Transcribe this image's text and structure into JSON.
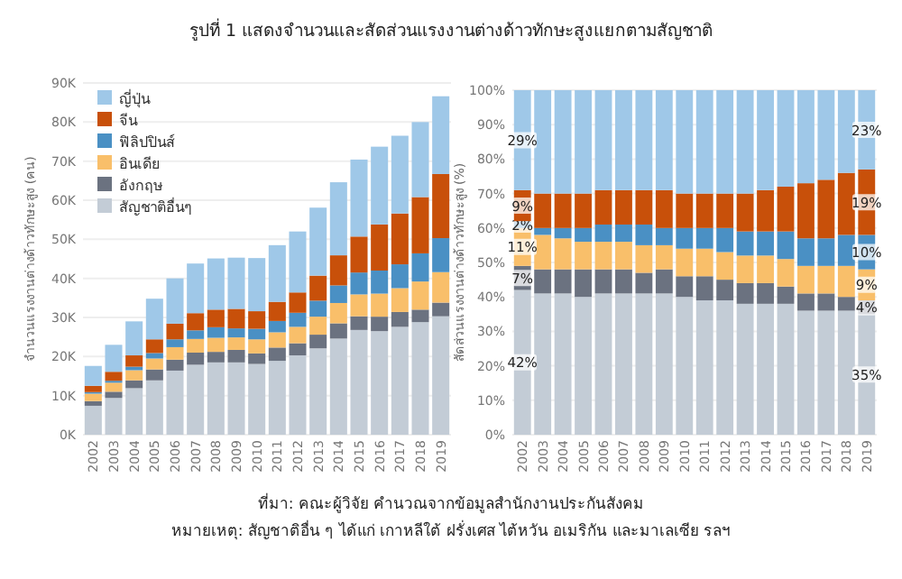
{
  "chart_data": [
    {
      "type": "bar",
      "title": "รูปที่ 1 แสดงจำนวนและสัดส่วนแรงงานต่างด้าวทักษะสูงแยกตามสัญชาติ",
      "ylabel": "จำนวนแรงงานต่างด้าวทักษะสูง (คน)",
      "stacked": true,
      "categories": [
        "2002",
        "2003",
        "2004",
        "2005",
        "2006",
        "2007",
        "2008",
        "2009",
        "2010",
        "2011",
        "2012",
        "2013",
        "2014",
        "2015",
        "2016",
        "2017",
        "2018",
        "2019"
      ],
      "series": [
        {
          "name": "สัญชาติอื่นๆ",
          "color": "#c3ccd6",
          "values": [
            7400,
            9400,
            11900,
            13900,
            16400,
            17900,
            18500,
            18500,
            18100,
            18900,
            20300,
            22100,
            24600,
            26800,
            26500,
            27600,
            28800,
            30300
          ]
        },
        {
          "name": "อังกฤษ",
          "color": "#6b7280",
          "values": [
            1200,
            1600,
            2000,
            2800,
            2800,
            3100,
            2700,
            3200,
            2700,
            3400,
            3100,
            3500,
            3900,
            3500,
            3700,
            3800,
            3200,
            3500
          ]
        },
        {
          "name": "อินเดีย",
          "color": "#f9bf6a",
          "values": [
            1900,
            2300,
            2600,
            2800,
            3200,
            3500,
            3600,
            3200,
            3600,
            3900,
            4200,
            4600,
            5200,
            5600,
            5900,
            6100,
            7200,
            7800
          ]
        },
        {
          "name": "ฟิลิปปินส์",
          "color": "#4a90c4",
          "values": [
            400,
            500,
            900,
            1400,
            2000,
            2200,
            2700,
            2300,
            2700,
            2900,
            3600,
            4100,
            4500,
            5600,
            5900,
            6100,
            7200,
            8700
          ]
        },
        {
          "name": "จีน",
          "color": "#c8500a",
          "values": [
            1600,
            2300,
            2900,
            3500,
            4000,
            4400,
            4500,
            5000,
            4500,
            4900,
            5200,
            6400,
            7700,
            9200,
            11800,
            13000,
            14400,
            16400
          ]
        },
        {
          "name": "ญี่ปุ่น",
          "color": "#9fc8e8",
          "values": [
            5100,
            6900,
            8700,
            10400,
            11600,
            12700,
            13100,
            13100,
            13600,
            14500,
            15600,
            17400,
            18700,
            19700,
            19900,
            19900,
            19200,
            19900
          ]
        }
      ],
      "ylim": [
        0,
        90000
      ],
      "yticks": [
        {
          "value": 0,
          "label": "0K"
        },
        {
          "value": 10000,
          "label": "10K"
        },
        {
          "value": 20000,
          "label": "20K"
        },
        {
          "value": 30000,
          "label": "30K"
        },
        {
          "value": 40000,
          "label": "40K"
        },
        {
          "value": 50000,
          "label": "50K"
        },
        {
          "value": 60000,
          "label": "60K"
        },
        {
          "value": 70000,
          "label": "70K"
        },
        {
          "value": 80000,
          "label": "80K"
        },
        {
          "value": 90000,
          "label": "90K"
        }
      ],
      "grid": "y",
      "legend": "top left",
      "annotations": [
        "ที่มา: คณะผู้วิจัย คำนวณจากข้อมูลสำนักงานประกันสังคม",
        "หมายเหตุ: สัญชาติอื่น ๆ ได้แก่ เกาหลีใต้ ฝรั่งเศส ไต้หวัน อเมริกัน และมาเลเซีย รลฯ"
      ]
    },
    {
      "type": "bar",
      "ylabel": "สัดส่วนแรงงานต่างด้าวทักษะสูง (%)",
      "stacked": true,
      "categories": [
        "2002",
        "2003",
        "2004",
        "2005",
        "2006",
        "2007",
        "2008",
        "2009",
        "2010",
        "2011",
        "2012",
        "2013",
        "2014",
        "2015",
        "2016",
        "2017",
        "2018",
        "2019"
      ],
      "series": [
        {
          "color": "#c3ccd6",
          "values": [
            42,
            41,
            41,
            40,
            41,
            41,
            41,
            41,
            40,
            39,
            39,
            38,
            38,
            38,
            36,
            36,
            36,
            35
          ],
          "value_labels": [
            "42%",
            null,
            null,
            null,
            null,
            null,
            null,
            null,
            null,
            null,
            null,
            null,
            null,
            null,
            null,
            null,
            null,
            "35%"
          ]
        },
        {
          "color": "#6b7280",
          "values": [
            7,
            7,
            7,
            8,
            7,
            7,
            6,
            7,
            6,
            7,
            6,
            6,
            6,
            5,
            5,
            5,
            4,
            4
          ],
          "value_labels": [
            "7%",
            null,
            null,
            null,
            null,
            null,
            null,
            null,
            null,
            null,
            null,
            null,
            null,
            null,
            null,
            null,
            null,
            "4%"
          ]
        },
        {
          "color": "#f9bf6a",
          "values": [
            11,
            10,
            9,
            8,
            8,
            8,
            8,
            7,
            8,
            8,
            8,
            8,
            8,
            8,
            8,
            8,
            9,
            9
          ],
          "value_labels": [
            "11%",
            null,
            null,
            null,
            null,
            null,
            null,
            null,
            null,
            null,
            null,
            null,
            null,
            null,
            null,
            null,
            null,
            "9%"
          ]
        },
        {
          "color": "#4a90c4",
          "values": [
            2,
            2,
            3,
            4,
            5,
            5,
            6,
            5,
            6,
            6,
            7,
            7,
            7,
            8,
            8,
            8,
            9,
            10
          ],
          "value_labels": [
            "2%",
            null,
            null,
            null,
            null,
            null,
            null,
            null,
            null,
            null,
            null,
            null,
            null,
            null,
            null,
            null,
            null,
            "10%"
          ]
        },
        {
          "color": "#c8500a",
          "values": [
            9,
            10,
            10,
            10,
            10,
            10,
            10,
            11,
            10,
            10,
            10,
            11,
            12,
            13,
            16,
            17,
            18,
            19
          ],
          "value_labels": [
            "9%",
            null,
            null,
            null,
            null,
            null,
            null,
            null,
            null,
            null,
            null,
            null,
            null,
            null,
            null,
            null,
            null,
            "19%"
          ]
        },
        {
          "color": "#9fc8e8",
          "values": [
            29,
            30,
            30,
            30,
            29,
            29,
            29,
            29,
            30,
            30,
            30,
            30,
            29,
            28,
            27,
            26,
            24,
            23
          ],
          "value_labels": [
            "29%",
            null,
            null,
            null,
            null,
            null,
            null,
            null,
            null,
            null,
            null,
            null,
            null,
            null,
            null,
            null,
            null,
            "23%"
          ]
        }
      ],
      "ylim": [
        0,
        100
      ],
      "yticks": [
        {
          "value": 0,
          "label": "0%"
        },
        {
          "value": 10,
          "label": "10%"
        },
        {
          "value": 20,
          "label": "20%"
        },
        {
          "value": 30,
          "label": "30%"
        },
        {
          "value": 40,
          "label": "40%"
        },
        {
          "value": 50,
          "label": "50%"
        },
        {
          "value": 60,
          "label": "60%"
        },
        {
          "value": 70,
          "label": "70%"
        },
        {
          "value": 80,
          "label": "80%"
        },
        {
          "value": 90,
          "label": "90%"
        },
        {
          "value": 100,
          "label": "100%"
        }
      ],
      "grid": "y"
    }
  ]
}
